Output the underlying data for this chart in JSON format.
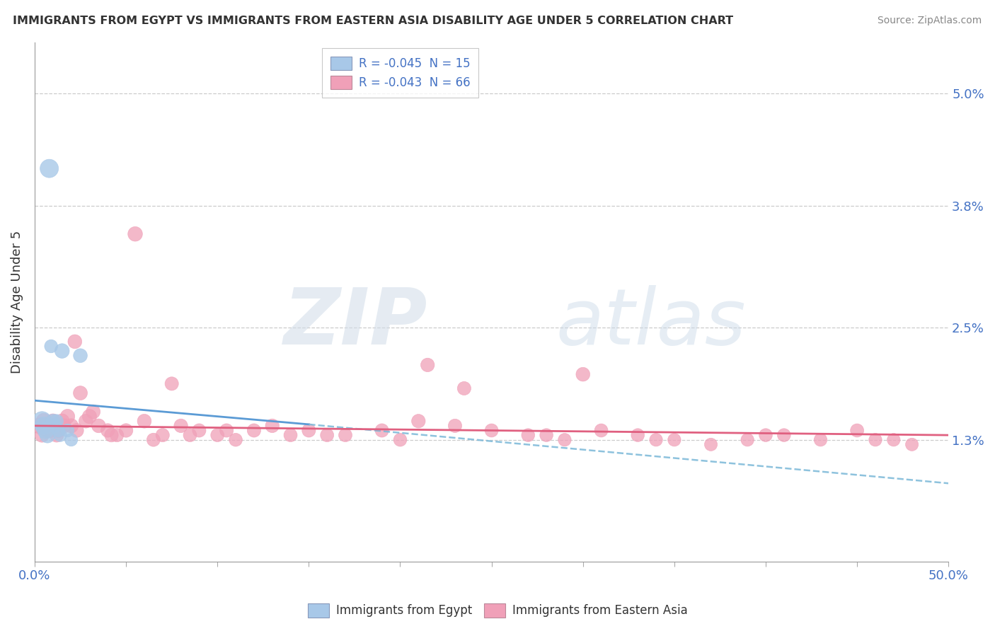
{
  "title": "IMMIGRANTS FROM EGYPT VS IMMIGRANTS FROM EASTERN ASIA DISABILITY AGE UNDER 5 CORRELATION CHART",
  "source": "Source: ZipAtlas.com",
  "ylabel": "Disability Age Under 5",
  "xlim": [
    0,
    50
  ],
  "ylim": [
    0,
    5.55
  ],
  "yticks": [
    0,
    1.3,
    2.5,
    3.8,
    5.0
  ],
  "right_ytick_labels": [
    "",
    "1.3%",
    "2.5%",
    "3.8%",
    "5.0%"
  ],
  "xtick_positions": [
    0,
    5,
    10,
    15,
    20,
    25,
    30,
    35,
    40,
    45,
    50
  ],
  "xtick_labels": [
    "0.0%",
    "",
    "",
    "",
    "",
    "",
    "",
    "",
    "",
    "",
    "50.0%"
  ],
  "legend_r1": "R = -0.045  N = 15",
  "legend_r2": "R = -0.043  N = 66",
  "color_egypt": "#a8c8e8",
  "color_eastern_asia": "#f0a0b8",
  "color_trend_egypt_solid": "#5b9bd5",
  "color_trend_egypt_dash": "#7ab8d8",
  "color_trend_ea_solid": "#e06080",
  "watermark_zip": "ZIP",
  "watermark_atlas": "atlas",
  "egypt_x": [
    0.8,
    0.9,
    1.5,
    2.5,
    0.4,
    0.5,
    0.6,
    0.7,
    1.0,
    1.1,
    1.2,
    1.3,
    1.4,
    1.8,
    2.0
  ],
  "egypt_y": [
    4.2,
    2.3,
    2.25,
    2.2,
    1.5,
    1.45,
    1.4,
    1.35,
    1.5,
    1.45,
    1.5,
    1.4,
    1.35,
    1.4,
    1.3
  ],
  "egypt_sizes": [
    350,
    180,
    220,
    200,
    380,
    320,
    280,
    250,
    200,
    190,
    185,
    180,
    175,
    180,
    170
  ],
  "ea_x": [
    0.3,
    0.5,
    0.6,
    0.8,
    1.0,
    1.1,
    1.3,
    1.5,
    1.8,
    2.0,
    2.2,
    2.5,
    2.8,
    3.0,
    3.5,
    4.0,
    4.5,
    5.0,
    6.0,
    7.0,
    8.0,
    9.0,
    10.0,
    11.0,
    12.0,
    13.0,
    14.0,
    15.0,
    17.0,
    19.0,
    21.0,
    23.0,
    25.0,
    27.0,
    29.0,
    31.0,
    33.0,
    35.0,
    37.0,
    39.0,
    41.0,
    43.0,
    45.0,
    47.0,
    48.0,
    30.0,
    5.5,
    7.5,
    21.5,
    23.5,
    0.4,
    0.7,
    1.2,
    1.6,
    2.3,
    3.2,
    4.2,
    6.5,
    8.5,
    10.5,
    16.0,
    20.0,
    28.0,
    34.0,
    40.0,
    46.0
  ],
  "ea_y": [
    1.45,
    1.5,
    1.45,
    1.4,
    1.5,
    1.45,
    1.4,
    1.5,
    1.55,
    1.45,
    2.35,
    1.8,
    1.5,
    1.55,
    1.45,
    1.4,
    1.35,
    1.4,
    1.5,
    1.35,
    1.45,
    1.4,
    1.35,
    1.3,
    1.4,
    1.45,
    1.35,
    1.4,
    1.35,
    1.4,
    1.5,
    1.45,
    1.4,
    1.35,
    1.3,
    1.4,
    1.35,
    1.3,
    1.25,
    1.3,
    1.35,
    1.3,
    1.4,
    1.3,
    1.25,
    2.0,
    3.5,
    1.9,
    2.1,
    1.85,
    1.35,
    1.4,
    1.35,
    1.45,
    1.4,
    1.6,
    1.35,
    1.3,
    1.35,
    1.4,
    1.35,
    1.3,
    1.35,
    1.3,
    1.35,
    1.3
  ],
  "ea_sizes": [
    280,
    250,
    240,
    230,
    220,
    215,
    210,
    220,
    215,
    210,
    200,
    205,
    200,
    210,
    200,
    195,
    190,
    195,
    200,
    190,
    195,
    190,
    185,
    180,
    190,
    195,
    185,
    190,
    185,
    190,
    195,
    190,
    185,
    180,
    175,
    185,
    180,
    175,
    170,
    175,
    180,
    175,
    185,
    175,
    170,
    200,
    220,
    190,
    195,
    190,
    210,
    215,
    205,
    210,
    200,
    205,
    195,
    185,
    185,
    190,
    185,
    180,
    180,
    175,
    180,
    175
  ]
}
